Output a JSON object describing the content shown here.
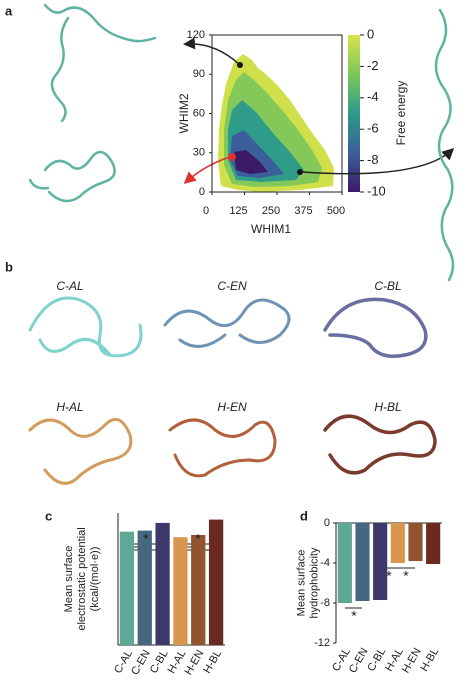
{
  "panel_labels": [
    "a",
    "b",
    "c",
    "d"
  ],
  "structures": [
    "C-AL",
    "C-EN",
    "C-BL",
    "H-AL",
    "H-EN",
    "H-BL"
  ],
  "chart_data": [
    {
      "type": "heatmap",
      "xlabel": "WHIM1",
      "ylabel": "WHIM2",
      "colorbar_label": "Free energy",
      "xlim": [
        0,
        500
      ],
      "xticks": [
        0,
        125,
        250,
        375,
        500
      ],
      "ylim": [
        0,
        120
      ],
      "yticks": [
        0,
        30,
        60,
        90,
        120
      ],
      "clim": [
        -10,
        0
      ],
      "cticks": [
        0,
        -2,
        -4,
        -6,
        -8,
        -10
      ]
    },
    {
      "type": "bar",
      "ylabel": [
        "Mean surface",
        "electrostatic potential",
        "(kcal/(mol·e))"
      ],
      "categories": [
        "C-AL",
        "C-EN",
        "C-BL",
        "H-AL",
        "H-EN",
        "H-BL"
      ],
      "values": [
        10.3,
        10.4,
        11.1,
        9.8,
        10.0,
        11.4
      ],
      "colors": [
        "#5fa896",
        "#45677f",
        "#3d3a6b",
        "#d9964e",
        "#92532f",
        "#6b2a20"
      ],
      "ylim": [
        0,
        12
      ],
      "annotations": [
        "*",
        "*"
      ]
    },
    {
      "type": "bar",
      "ylabel": [
        "Mean surface",
        "hydrophobicity"
      ],
      "categories": [
        "C-AL",
        "C-EN",
        "C-BL",
        "H-AL",
        "H-EN",
        "H-BL"
      ],
      "values": [
        -8.0,
        -7.8,
        -7.7,
        -4.0,
        -3.8,
        -4.1
      ],
      "colors": [
        "#5fa896",
        "#45677f",
        "#3d3a6b",
        "#d9964e",
        "#92532f",
        "#6b2a20"
      ],
      "ylim": [
        -12,
        0
      ],
      "yticks": [
        0,
        -4,
        -8,
        -12
      ],
      "annotations": [
        "*",
        "*",
        "*"
      ]
    }
  ]
}
